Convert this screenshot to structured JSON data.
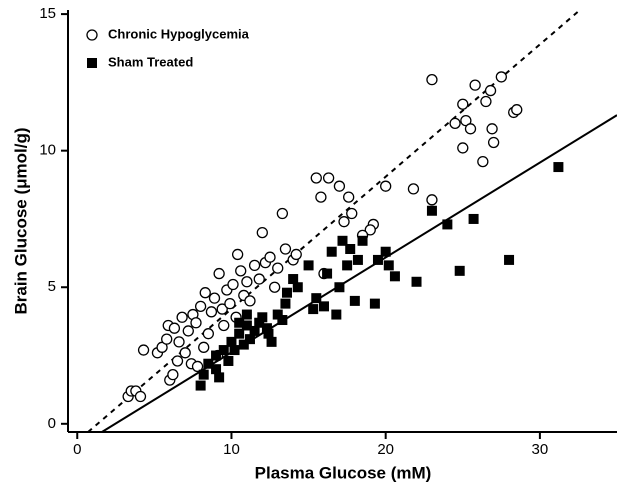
{
  "chart_data": {
    "type": "scatter",
    "x_label": "Plasma Glucose (mM)",
    "y_label": "Brain Glucose (μmol/g)",
    "xlim": [
      -0.6,
      35
    ],
    "ylim": [
      -0.3,
      15.15
    ],
    "xticks": [
      0,
      10,
      20,
      30
    ],
    "yticks": [
      0,
      5,
      10,
      15
    ],
    "legend": "upper left",
    "series": [
      {
        "name": "Chronic Hypoglycemia",
        "marker": "open-circle",
        "color": "#000000",
        "x": [
          3.3,
          3.5,
          3.8,
          4.1,
          4.3,
          5.2,
          5.5,
          5.8,
          5.9,
          6.0,
          6.2,
          6.3,
          6.5,
          6.6,
          6.8,
          7.0,
          7.2,
          7.4,
          7.5,
          7.7,
          7.8,
          8.0,
          8.2,
          8.3,
          8.5,
          8.7,
          8.9,
          9.1,
          9.2,
          9.4,
          9.5,
          9.7,
          9.9,
          10.1,
          10.3,
          10.4,
          10.6,
          10.8,
          11.0,
          11.2,
          11.5,
          11.8,
          12.0,
          12.2,
          12.5,
          12.8,
          13.0,
          13.3,
          13.5,
          14.0,
          15.5,
          15.8,
          16.3,
          17.0,
          17.3,
          17.6,
          17.8,
          19.2,
          20.0,
          21.8,
          23.0,
          23.0,
          24.5,
          25.0,
          25.2,
          25.5,
          25.8,
          26.5,
          26.3,
          26.8,
          26.9,
          27.0,
          27.5,
          28.3,
          28.5,
          25.0,
          19.0,
          18.5,
          16.0,
          14.2
        ],
        "values": [
          1.0,
          1.2,
          1.2,
          1.0,
          2.7,
          2.6,
          2.8,
          3.1,
          3.6,
          1.6,
          1.8,
          3.5,
          2.3,
          3.0,
          3.9,
          2.6,
          3.4,
          2.2,
          4.0,
          3.7,
          2.1,
          4.3,
          2.8,
          4.8,
          3.3,
          4.1,
          4.6,
          2.5,
          5.5,
          4.2,
          3.6,
          4.9,
          4.4,
          5.1,
          3.9,
          6.2,
          5.6,
          4.7,
          5.2,
          4.5,
          5.8,
          5.3,
          7.0,
          5.9,
          6.1,
          5.0,
          5.7,
          7.7,
          6.4,
          6.0,
          9.0,
          8.3,
          9.0,
          8.7,
          7.4,
          8.3,
          7.7,
          7.3,
          8.7,
          8.6,
          12.6,
          8.2,
          11.0,
          11.7,
          11.1,
          10.8,
          12.4,
          11.8,
          9.6,
          12.2,
          10.8,
          10.3,
          12.7,
          11.4,
          11.5,
          10.1,
          7.1,
          6.9,
          5.5,
          6.2
        ]
      },
      {
        "name": "Sham Treated",
        "marker": "filled-square",
        "color": "#000000",
        "x": [
          8.0,
          8.2,
          8.5,
          9.0,
          9.2,
          9.5,
          9.8,
          10.0,
          10.2,
          10.5,
          10.8,
          11.0,
          11.2,
          11.5,
          11.8,
          12.0,
          12.3,
          12.6,
          13.0,
          13.3,
          13.6,
          14.0,
          14.3,
          15.0,
          15.3,
          15.5,
          16.0,
          16.2,
          16.5,
          16.8,
          17.0,
          17.2,
          17.5,
          17.7,
          18.0,
          18.2,
          18.5,
          19.3,
          19.5,
          20.0,
          20.2,
          20.6,
          22.0,
          23.0,
          24.0,
          24.8,
          25.7,
          28.0,
          31.2,
          12.4,
          11.0,
          10.5,
          9.0,
          13.5
        ],
        "values": [
          1.4,
          1.8,
          2.2,
          2.5,
          1.7,
          2.7,
          2.3,
          3.0,
          2.7,
          3.3,
          2.9,
          3.6,
          3.1,
          3.4,
          3.7,
          3.9,
          3.5,
          3.0,
          4.0,
          3.8,
          4.8,
          5.3,
          5.0,
          5.8,
          4.2,
          4.6,
          4.3,
          5.5,
          6.3,
          4.0,
          5.0,
          6.7,
          5.8,
          6.4,
          4.5,
          6.0,
          6.7,
          4.4,
          6.0,
          6.3,
          5.8,
          5.4,
          5.2,
          7.8,
          7.3,
          5.6,
          7.5,
          6.0,
          9.4,
          3.3,
          4.0,
          3.7,
          2.0,
          4.4
        ]
      }
    ],
    "fit_lines": [
      {
        "x": [
          0.7,
          32.6
        ],
        "y": [
          -0.3,
          15.15
        ],
        "dashed": true
      },
      {
        "x": [
          1.6,
          35
        ],
        "y": [
          -0.3,
          11.3
        ],
        "dashed": false
      }
    ]
  }
}
